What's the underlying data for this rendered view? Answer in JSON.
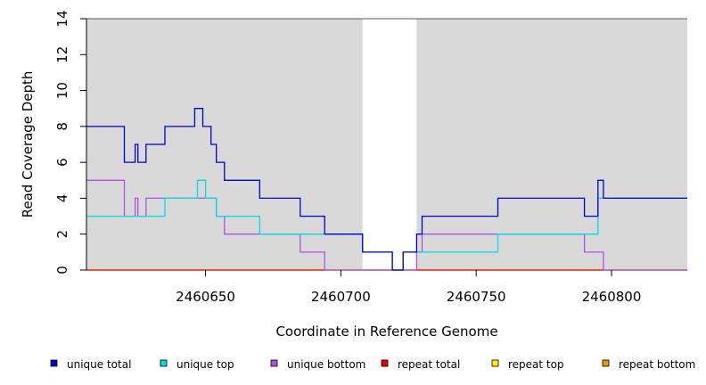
{
  "chart_data": {
    "type": "line",
    "step": true,
    "xlabel": "Coordinate in Reference Genome",
    "ylabel": "Read Coverage Depth",
    "xlim": [
      2460606,
      2460828
    ],
    "ylim": [
      0,
      14
    ],
    "x_ticks": [
      2460650,
      2460700,
      2460750,
      2460800
    ],
    "y_ticks": [
      0,
      2,
      4,
      6,
      8,
      10,
      12,
      14
    ],
    "shaded_regions": [
      {
        "from": 2460606,
        "to": 2460708
      },
      {
        "from": 2460728,
        "to": 2460828
      }
    ],
    "series": [
      {
        "name": "unique total",
        "color": "#0000cc",
        "points": [
          [
            2460606,
            8
          ],
          [
            2460620,
            6
          ],
          [
            2460624,
            7
          ],
          [
            2460625,
            6
          ],
          [
            2460628,
            7
          ],
          [
            2460635,
            8
          ],
          [
            2460646,
            9
          ],
          [
            2460649,
            8
          ],
          [
            2460652,
            7
          ],
          [
            2460654,
            6
          ],
          [
            2460657,
            5
          ],
          [
            2460670,
            4
          ],
          [
            2460685,
            3
          ],
          [
            2460694,
            2
          ],
          [
            2460708,
            1
          ],
          [
            2460719,
            0
          ],
          [
            2460723,
            1
          ],
          [
            2460728,
            2
          ],
          [
            2460730,
            3
          ],
          [
            2460758,
            4
          ],
          [
            2460790,
            3
          ],
          [
            2460795,
            5
          ],
          [
            2460797,
            4
          ],
          [
            2460828,
            4
          ]
        ]
      },
      {
        "name": "unique top",
        "color": "#00dddd",
        "points": [
          [
            2460606,
            3
          ],
          [
            2460635,
            4
          ],
          [
            2460647,
            5
          ],
          [
            2460650,
            4
          ],
          [
            2460654,
            3
          ],
          [
            2460670,
            2
          ],
          [
            2460694,
            2
          ],
          [
            2460708,
            1
          ],
          [
            2460719,
            0
          ],
          [
            2460723,
            1
          ],
          [
            2460758,
            2
          ],
          [
            2460795,
            4
          ],
          [
            2460828,
            4
          ]
        ]
      },
      {
        "name": "unique bottom",
        "color": "#aa55dd",
        "points": [
          [
            2460606,
            5
          ],
          [
            2460620,
            3
          ],
          [
            2460624,
            4
          ],
          [
            2460625,
            3
          ],
          [
            2460628,
            4
          ],
          [
            2460654,
            3
          ],
          [
            2460657,
            2
          ],
          [
            2460685,
            1
          ],
          [
            2460694,
            0
          ],
          [
            2460728,
            1
          ],
          [
            2460730,
            2
          ],
          [
            2460790,
            1
          ],
          [
            2460797,
            0
          ],
          [
            2460828,
            0
          ]
        ]
      },
      {
        "name": "repeat total",
        "color": "#ee0000",
        "points": [
          [
            2460606,
            0
          ],
          [
            2460828,
            0
          ]
        ]
      },
      {
        "name": "repeat top",
        "color": "#ffee00",
        "points": [
          [
            2460606,
            0
          ],
          [
            2460828,
            0
          ]
        ]
      },
      {
        "name": "repeat bottom",
        "color": "#ee9900",
        "points": [
          [
            2460606,
            0
          ],
          [
            2460828,
            0
          ]
        ]
      }
    ],
    "legend_placement": "bottom"
  },
  "colors": {
    "shade": "#d9d9d9",
    "axis": "#000000"
  }
}
